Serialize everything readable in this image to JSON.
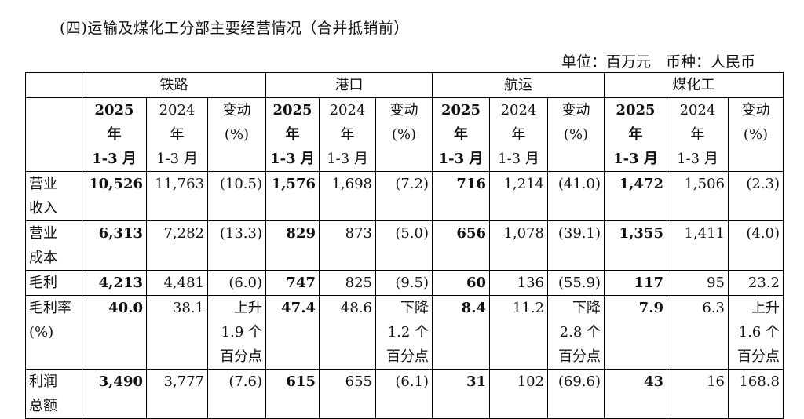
{
  "title": "(四)运输及煤化工分部主要经营情况（合并抵销前）",
  "unit_note": "单位：百万元　币种：人民币",
  "segments": [
    "铁路",
    "港口",
    "航运",
    "煤化工"
  ],
  "subheaders": [
    {
      "lines": [
        "2025 年",
        "1-3 月"
      ],
      "bold": true
    },
    {
      "lines": [
        "2024 年",
        "1-3 月"
      ],
      "bold": false
    },
    {
      "lines": [
        "变动",
        "(%)"
      ],
      "bold": false
    }
  ],
  "rows": [
    {
      "label": [
        "营业",
        "收入"
      ],
      "cells": [
        [
          "10,526"
        ],
        [
          "11,763"
        ],
        [
          "(10.5)"
        ],
        [
          "1,576"
        ],
        [
          "1,698"
        ],
        [
          "(7.2)"
        ],
        [
          "716"
        ],
        [
          "1,214"
        ],
        [
          "(41.0)"
        ],
        [
          "1,472"
        ],
        [
          "1,506"
        ],
        [
          "(2.3)"
        ]
      ]
    },
    {
      "label": [
        "营业",
        "成本"
      ],
      "cells": [
        [
          "6,313"
        ],
        [
          "7,282"
        ],
        [
          "(13.3)"
        ],
        [
          "829"
        ],
        [
          "873"
        ],
        [
          "(5.0)"
        ],
        [
          "656"
        ],
        [
          "1,078"
        ],
        [
          "(39.1)"
        ],
        [
          "1,355"
        ],
        [
          "1,411"
        ],
        [
          "(4.0)"
        ]
      ]
    },
    {
      "label": [
        "毛利"
      ],
      "cells": [
        [
          "4,213"
        ],
        [
          "4,481"
        ],
        [
          "(6.0)"
        ],
        [
          "747"
        ],
        [
          "825"
        ],
        [
          "(9.5)"
        ],
        [
          "60"
        ],
        [
          "136"
        ],
        [
          "(55.9)"
        ],
        [
          "117"
        ],
        [
          "95"
        ],
        [
          "23.2"
        ]
      ]
    },
    {
      "label": [
        "毛利率",
        "(%)"
      ],
      "cells": [
        [
          "40.0"
        ],
        [
          "38.1"
        ],
        [
          "上升",
          "1.9 个",
          "百分点"
        ],
        [
          "47.4"
        ],
        [
          "48.6"
        ],
        [
          "下降",
          "1.2 个",
          "百分点"
        ],
        [
          "8.4"
        ],
        [
          "11.2"
        ],
        [
          "下降",
          "2.8 个",
          "百分点"
        ],
        [
          "7.9"
        ],
        [
          "6.3"
        ],
        [
          "上升",
          "1.6 个",
          "百分点"
        ]
      ]
    },
    {
      "label": [
        "利润",
        "总额"
      ],
      "cells": [
        [
          "3,490"
        ],
        [
          "3,777"
        ],
        [
          "(7.6)"
        ],
        [
          "615"
        ],
        [
          "655"
        ],
        [
          "(6.1)"
        ],
        [
          "31"
        ],
        [
          "102"
        ],
        [
          "(69.6)"
        ],
        [
          "43"
        ],
        [
          "16"
        ],
        [
          "168.8"
        ]
      ]
    }
  ]
}
